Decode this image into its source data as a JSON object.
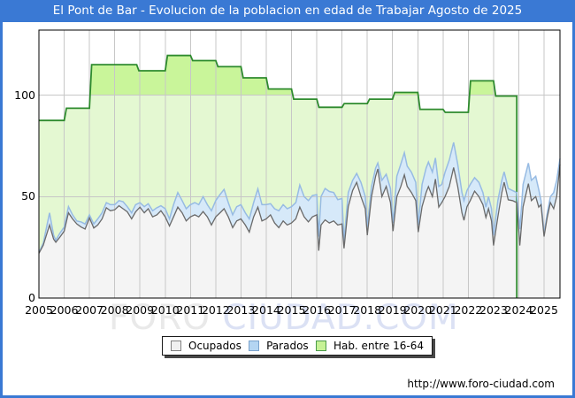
{
  "title": "El Pont de Bar - Evolucion de la poblacion en edad de Trabajar Agosto de 2025",
  "footer": {
    "url": "http://www.foro-ciudad.com"
  },
  "watermark": {
    "part1": "FORO",
    "part2": " CIUDAD.COM"
  },
  "colors": {
    "frame_blue": "#3a79d4",
    "grid": "#c7c7c7",
    "plot_border": "#000000",
    "green_line": "#2e8b2e",
    "green_fill_above100": "#c9f59a",
    "green_fill_below100": "#e4f8d2",
    "blue_line": "#97bbe3",
    "blue_fill": "#d6e9f9",
    "gray_line": "#6a6a6a",
    "gray_fill": "#f4f4f4",
    "watermark_gray": "#e9e9e9",
    "watermark_blue": "#dbe1f4"
  },
  "legend": {
    "items": [
      {
        "label": "Ocupados",
        "fill": "#f0f0f0",
        "border": "#808080"
      },
      {
        "label": "Parados",
        "fill": "#b4d5f2",
        "border": "#7aa2cc"
      },
      {
        "label": "Hab. entre 16-64",
        "fill": "#c6f296",
        "border": "#4a9a4a"
      }
    ]
  },
  "chart_data": {
    "type": "area",
    "title": "El Pont de Bar - Evolucion de la poblacion en edad de Trabajar Agosto de 2025",
    "xlabel": "",
    "ylabel": "",
    "x_axis": {
      "ticks": [
        2005,
        2006,
        2007,
        2008,
        2009,
        2010,
        2011,
        2012,
        2013,
        2014,
        2015,
        2016,
        2017,
        2018,
        2019,
        2020,
        2021,
        2022,
        2023,
        2024,
        2025
      ],
      "range": [
        2005,
        2025.63
      ]
    },
    "y_axis": {
      "ticks": [
        0,
        50,
        100
      ],
      "grid_ticks": [
        50,
        100
      ],
      "range": [
        0,
        132
      ]
    },
    "legend_position": "bottom",
    "series_green": {
      "name": "Hab. entre 16-64",
      "style": "step-area",
      "end": 2023.92,
      "steps": [
        [
          2005,
          87.5
        ],
        [
          2006,
          93.5
        ],
        [
          2007,
          115
        ],
        [
          2008.87,
          112
        ],
        [
          2010,
          119.5
        ],
        [
          2011,
          117
        ],
        [
          2012,
          114
        ],
        [
          2013,
          108.5
        ],
        [
          2014,
          103
        ],
        [
          2015,
          98
        ],
        [
          2016,
          94
        ],
        [
          2017,
          95.8
        ],
        [
          2018,
          98
        ],
        [
          2019,
          101.3
        ],
        [
          2020,
          93
        ],
        [
          2021,
          91.5
        ],
        [
          2022,
          107
        ],
        [
          2023,
          99.5
        ]
      ]
    },
    "series_note": "months rows are [year_fraction, ocupados, ocupados_plus_parados_top]; Parados band is drawn between the two lines",
    "months": [
      [
        2005.0,
        22,
        22.5
      ],
      [
        2005.17,
        26,
        27
      ],
      [
        2005.42,
        36,
        42
      ],
      [
        2005.58,
        29,
        31
      ],
      [
        2005.67,
        27.5,
        28.5
      ],
      [
        2005.83,
        30,
        32
      ],
      [
        2006.0,
        33,
        35
      ],
      [
        2006.17,
        42,
        45
      ],
      [
        2006.33,
        39,
        41
      ],
      [
        2006.5,
        36.5,
        38
      ],
      [
        2006.67,
        35,
        37.5
      ],
      [
        2006.83,
        34,
        36.5
      ],
      [
        2007.0,
        39.5,
        41
      ],
      [
        2007.17,
        34.5,
        36.5
      ],
      [
        2007.33,
        36,
        39
      ],
      [
        2007.5,
        39,
        42
      ],
      [
        2007.67,
        44.5,
        47
      ],
      [
        2007.83,
        43,
        46
      ],
      [
        2008.0,
        43.5,
        46
      ],
      [
        2008.17,
        45.5,
        48
      ],
      [
        2008.33,
        44,
        47.5
      ],
      [
        2008.5,
        42.5,
        45
      ],
      [
        2008.67,
        39,
        42
      ],
      [
        2008.83,
        42.5,
        46
      ],
      [
        2009.0,
        44.8,
        47
      ],
      [
        2009.17,
        42,
        45
      ],
      [
        2009.33,
        44,
        46.5
      ],
      [
        2009.5,
        40,
        43
      ],
      [
        2009.67,
        41,
        44.5
      ],
      [
        2009.83,
        43,
        45.5
      ],
      [
        2010.0,
        40,
        44
      ],
      [
        2010.17,
        35.5,
        39
      ],
      [
        2010.33,
        40,
        46
      ],
      [
        2010.5,
        44.8,
        52
      ],
      [
        2010.67,
        42,
        48
      ],
      [
        2010.83,
        38,
        44
      ],
      [
        2011.0,
        40,
        46
      ],
      [
        2011.17,
        41,
        47
      ],
      [
        2011.33,
        40,
        46
      ],
      [
        2011.5,
        42.6,
        50
      ],
      [
        2011.67,
        40,
        46
      ],
      [
        2011.83,
        36,
        43
      ],
      [
        2012.0,
        40,
        48
      ],
      [
        2012.17,
        42,
        51
      ],
      [
        2012.33,
        44,
        53.5
      ],
      [
        2012.5,
        40,
        47
      ],
      [
        2012.67,
        34.7,
        41
      ],
      [
        2012.83,
        38,
        45
      ],
      [
        2013.0,
        39,
        46
      ],
      [
        2013.17,
        36,
        42
      ],
      [
        2013.33,
        32.5,
        39
      ],
      [
        2013.5,
        40,
        47
      ],
      [
        2013.67,
        44.8,
        53.8
      ],
      [
        2013.83,
        38,
        46
      ],
      [
        2014.0,
        39,
        46
      ],
      [
        2014.17,
        41,
        46.5
      ],
      [
        2014.33,
        37,
        44
      ],
      [
        2014.5,
        34.7,
        43
      ],
      [
        2014.67,
        38,
        46
      ],
      [
        2014.83,
        36,
        44
      ],
      [
        2015.0,
        37,
        45
      ],
      [
        2015.17,
        39,
        47
      ],
      [
        2015.33,
        44.8,
        55.7
      ],
      [
        2015.5,
        40,
        50
      ],
      [
        2015.67,
        37.5,
        48
      ],
      [
        2015.83,
        40,
        50.5
      ],
      [
        2016.0,
        41,
        51
      ],
      [
        2016.08,
        23.3,
        30.3
      ],
      [
        2016.17,
        36,
        50
      ],
      [
        2016.33,
        38.5,
        54
      ],
      [
        2016.5,
        37,
        52.5
      ],
      [
        2016.67,
        38,
        52
      ],
      [
        2016.83,
        36,
        48.5
      ],
      [
        2017.0,
        36.5,
        49
      ],
      [
        2017.08,
        24.5,
        28.1
      ],
      [
        2017.25,
        45,
        52
      ],
      [
        2017.42,
        53,
        58
      ],
      [
        2017.58,
        57,
        61.4
      ],
      [
        2017.75,
        50,
        57
      ],
      [
        2017.92,
        44,
        50
      ],
      [
        2018.0,
        31,
        35
      ],
      [
        2018.17,
        50,
        55
      ],
      [
        2018.33,
        60,
        64
      ],
      [
        2018.42,
        63.6,
        66.5
      ],
      [
        2018.58,
        50,
        58
      ],
      [
        2018.75,
        55,
        61
      ],
      [
        2018.92,
        47,
        54
      ],
      [
        2019.02,
        33,
        37
      ],
      [
        2019.17,
        50,
        60
      ],
      [
        2019.33,
        55,
        66
      ],
      [
        2019.47,
        60.7,
        71.6
      ],
      [
        2019.58,
        55,
        65
      ],
      [
        2019.75,
        52,
        62
      ],
      [
        2019.92,
        48,
        57
      ],
      [
        2020.02,
        32.5,
        36
      ],
      [
        2020.17,
        45,
        56
      ],
      [
        2020.33,
        52,
        64
      ],
      [
        2020.42,
        54.9,
        67
      ],
      [
        2020.58,
        50,
        62
      ],
      [
        2020.7,
        58.6,
        69
      ],
      [
        2020.83,
        44.8,
        55
      ],
      [
        2020.95,
        47,
        56
      ],
      [
        2021.08,
        50,
        62
      ],
      [
        2021.25,
        55,
        68
      ],
      [
        2021.42,
        64.3,
        76.7
      ],
      [
        2021.58,
        55,
        66
      ],
      [
        2021.75,
        42,
        52
      ],
      [
        2021.83,
        38.3,
        48
      ],
      [
        2021.95,
        45,
        53
      ],
      [
        2022.08,
        48,
        56
      ],
      [
        2022.25,
        52.7,
        59.3
      ],
      [
        2022.42,
        50,
        57
      ],
      [
        2022.58,
        46,
        52
      ],
      [
        2022.7,
        39.7,
        44.8
      ],
      [
        2022.8,
        44,
        50
      ],
      [
        2022.92,
        38,
        44
      ],
      [
        2023.0,
        25.9,
        31
      ],
      [
        2023.17,
        40,
        48
      ],
      [
        2023.33,
        52,
        58
      ],
      [
        2023.42,
        57.1,
        62.2
      ],
      [
        2023.58,
        48.4,
        54
      ],
      [
        2023.75,
        48,
        53
      ],
      [
        2023.92,
        47,
        52
      ],
      [
        2024.04,
        25.9,
        33.9
      ],
      [
        2024.17,
        45,
        56
      ],
      [
        2024.38,
        56.4,
        66.5
      ],
      [
        2024.5,
        48,
        58
      ],
      [
        2024.67,
        50,
        60
      ],
      [
        2024.79,
        44.8,
        53.5
      ],
      [
        2024.88,
        46,
        48
      ],
      [
        2025.0,
        30.3,
        31.7
      ],
      [
        2025.13,
        40,
        42
      ],
      [
        2025.25,
        47,
        50
      ],
      [
        2025.38,
        44,
        52
      ],
      [
        2025.5,
        50,
        58
      ],
      [
        2025.63,
        65.8,
        68.7
      ]
    ]
  }
}
